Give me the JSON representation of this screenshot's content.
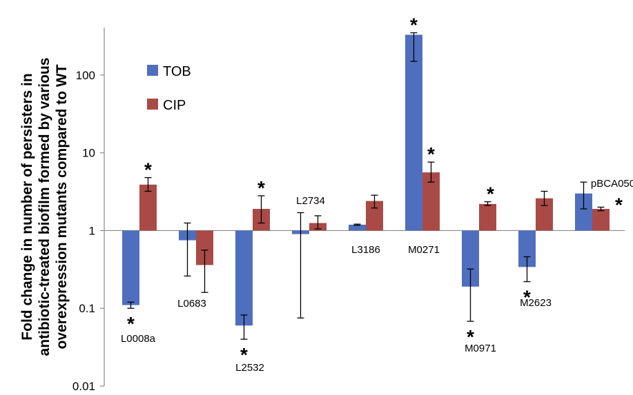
{
  "chart_data": {
    "type": "bar",
    "ylabel_lines": [
      "Fold change in number of persisters in",
      "antibiotic-treated biofilm formed by various",
      "overexpression mutants compared to WT"
    ],
    "yscale": "log",
    "ylim": [
      0.01,
      400
    ],
    "yticks": [
      0.01,
      0.1,
      1,
      10,
      100
    ],
    "ytick_labels": [
      "0.01",
      "0.1",
      "1",
      "10",
      "100"
    ],
    "categories": [
      "L0008a",
      "L0683",
      "L2532",
      "L2734",
      "L3186",
      "M0271",
      "M0971",
      "M2623",
      "pBCA050"
    ],
    "series": [
      {
        "name": "TOB",
        "color": "#4f6fbe",
        "values": [
          0.11,
          0.75,
          0.06,
          0.9,
          1.19,
          330,
          0.19,
          0.34,
          3.0
        ],
        "err_low": [
          0.1,
          0.26,
          0.04,
          0.075,
          1.17,
          150,
          0.068,
          0.22,
          1.9
        ],
        "err_high": [
          0.12,
          1.25,
          0.082,
          1.7,
          1.21,
          350,
          0.32,
          0.46,
          4.2
        ],
        "significant": [
          true,
          false,
          true,
          false,
          false,
          true,
          true,
          true,
          false
        ]
      },
      {
        "name": "CIP",
        "color": "#a94a46",
        "values": [
          3.9,
          0.36,
          1.9,
          1.25,
          2.4,
          5.6,
          2.2,
          2.6,
          1.9
        ],
        "err_low": [
          3.2,
          0.16,
          1.25,
          1.05,
          1.95,
          4.2,
          2.1,
          2.1,
          1.8
        ],
        "err_high": [
          4.8,
          0.56,
          2.8,
          1.55,
          2.85,
          7.6,
          2.35,
          3.2,
          2.0
        ],
        "significant": [
          true,
          false,
          true,
          false,
          false,
          true,
          true,
          false,
          true
        ]
      }
    ],
    "legend": {
      "position": "top-left",
      "entries": [
        "TOB",
        "CIP"
      ]
    },
    "grid": false,
    "significance_marker": "*"
  }
}
